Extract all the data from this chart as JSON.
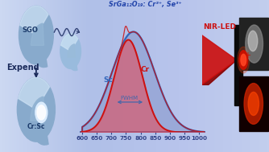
{
  "title": "SrGa₁₂O₁₉: Cr³⁺, Se³⁺",
  "xlabel_ticks": [
    600,
    650,
    700,
    750,
    800,
    850,
    900,
    950,
    1000
  ],
  "peak_blue": 775,
  "sigma_blue": 72,
  "peak_red": 758,
  "sigma_red": 48,
  "blue_color": "#3366bb",
  "red_color": "#cc1111",
  "fill_blue_color": "#8899cc",
  "fill_red_color": "#dd5566",
  "axis_color": "#334488",
  "title_color": "#2244aa",
  "nir_color": "#cc1111",
  "label_sc": "Sc",
  "label_cr": "Cr",
  "label_fwhm": "FWHM",
  "label_nir": "NIR-LED",
  "label_sgo": "SGO",
  "label_expend": "Expend",
  "bg_colors": [
    "#c0d0ee",
    "#aabcdf",
    "#b8c4e8",
    "#c8d4f0"
  ]
}
